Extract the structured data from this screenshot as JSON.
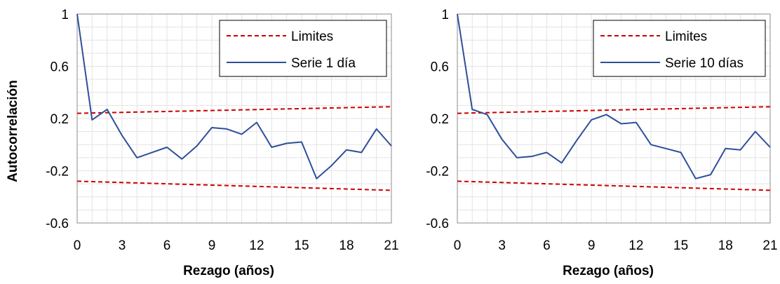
{
  "chart_data": [
    {
      "type": "line",
      "xlabel": "Rezago (años)",
      "ylabel": "Autocorrelación",
      "xlim": [
        0,
        21
      ],
      "ylim": [
        -0.6,
        1
      ],
      "xticks": [
        "0",
        "3",
        "6",
        "9",
        "12",
        "15",
        "18",
        "21"
      ],
      "yticks": [
        "-0.6",
        "-0.2",
        "0.2",
        "0.6",
        "1"
      ],
      "grid": true,
      "legend_position": "top-right",
      "series": [
        {
          "name": "Limites",
          "style": "dashed",
          "color": "#cc0000",
          "x": [
            0,
            21
          ],
          "y": [
            0.24,
            0.29
          ]
        },
        {
          "name": "Limites",
          "style": "dashed",
          "color": "#cc0000",
          "x": [
            0,
            21
          ],
          "y": [
            -0.28,
            -0.35
          ]
        },
        {
          "name": "Serie 1 día",
          "style": "solid",
          "color": "#2e4f9a",
          "x": [
            0,
            1,
            2,
            3,
            4,
            5,
            6,
            7,
            8,
            9,
            10,
            11,
            12,
            13,
            14,
            15,
            16,
            17,
            18,
            19,
            20,
            21
          ],
          "y": [
            1.0,
            0.19,
            0.27,
            0.07,
            -0.1,
            -0.06,
            -0.02,
            -0.11,
            -0.01,
            0.13,
            0.12,
            0.08,
            0.17,
            -0.02,
            0.01,
            0.02,
            -0.26,
            -0.16,
            -0.04,
            -0.06,
            0.12,
            -0.01
          ]
        }
      ],
      "legend": [
        "Limites",
        "Serie 1 día"
      ]
    },
    {
      "type": "line",
      "xlabel": "Rezago (años)",
      "ylabel": "",
      "xlim": [
        0,
        21
      ],
      "ylim": [
        -0.6,
        1
      ],
      "xticks": [
        "0",
        "3",
        "6",
        "9",
        "12",
        "15",
        "18",
        "21"
      ],
      "yticks": [
        "-0.6",
        "-0.2",
        "0.2",
        "0.6",
        "1"
      ],
      "grid": true,
      "legend_position": "top-right",
      "series": [
        {
          "name": "Limites",
          "style": "dashed",
          "color": "#cc0000",
          "x": [
            0,
            21
          ],
          "y": [
            0.24,
            0.29
          ]
        },
        {
          "name": "Limites",
          "style": "dashed",
          "color": "#cc0000",
          "x": [
            0,
            21
          ],
          "y": [
            -0.28,
            -0.35
          ]
        },
        {
          "name": "Serie 10 días",
          "style": "solid",
          "color": "#2e4f9a",
          "x": [
            0,
            1,
            2,
            3,
            4,
            5,
            6,
            7,
            8,
            9,
            10,
            11,
            12,
            13,
            14,
            15,
            16,
            17,
            18,
            19,
            20,
            21
          ],
          "y": [
            1.0,
            0.27,
            0.23,
            0.04,
            -0.1,
            -0.09,
            -0.06,
            -0.14,
            0.03,
            0.19,
            0.23,
            0.16,
            0.17,
            0.0,
            -0.03,
            -0.06,
            -0.26,
            -0.23,
            -0.03,
            -0.04,
            0.1,
            -0.02
          ]
        }
      ],
      "legend": [
        "Limites",
        "Serie 10 días"
      ]
    }
  ]
}
